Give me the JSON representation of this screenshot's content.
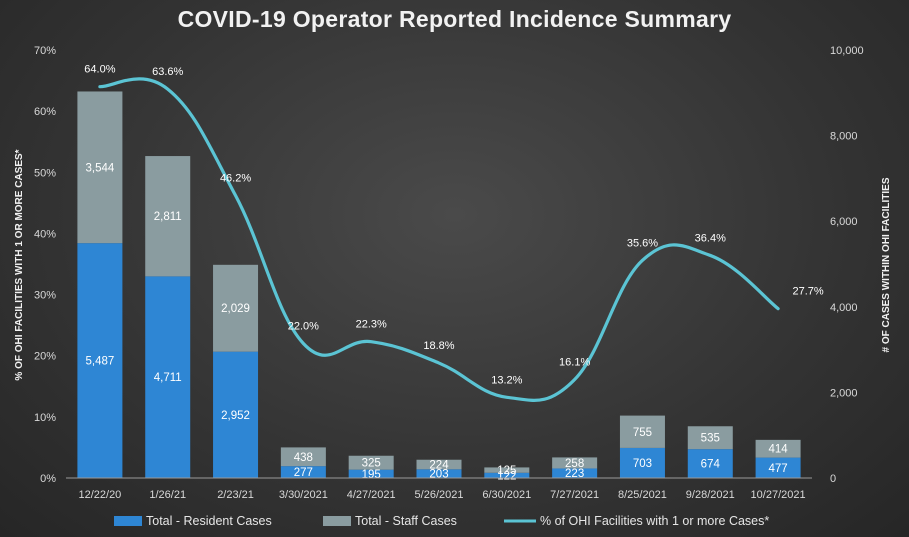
{
  "chart_data": {
    "type": "bar",
    "title": "COVID-19 Operator Reported Incidence Summary",
    "categories": [
      "12/22/20",
      "1/26/21",
      "2/23/21",
      "3/30/2021",
      "4/27/2021",
      "5/26/2021",
      "6/30/2021",
      "7/27/2021",
      "8/25/2021",
      "9/28/2021",
      "10/27/2021"
    ],
    "series": [
      {
        "name": "Total - Resident Cases",
        "type": "stacked-bar",
        "axis": "right",
        "color": "#2e86d4",
        "values": [
          5487,
          4711,
          2952,
          277,
          195,
          203,
          122,
          223,
          703,
          674,
          477
        ],
        "labels": [
          "5,487",
          "4,711",
          "2,952",
          "277",
          "195",
          "203",
          "122",
          "223",
          "703",
          "674",
          "477"
        ]
      },
      {
        "name": "Total - Staff Cases",
        "type": "stacked-bar",
        "axis": "right",
        "color": "#8a9ca0",
        "values": [
          3544,
          2811,
          2029,
          438,
          325,
          224,
          125,
          258,
          755,
          535,
          414
        ],
        "labels": [
          "3,544",
          "2,811",
          "2,029",
          "438",
          "325",
          "224",
          "125",
          "258",
          "755",
          "535",
          "414"
        ]
      },
      {
        "name": "% of OHI Facilities with 1 or more Cases*",
        "type": "line",
        "axis": "left",
        "color": "#5bc4d4",
        "values": [
          64.0,
          63.6,
          46.2,
          22.0,
          22.3,
          18.8,
          13.2,
          16.1,
          35.6,
          36.4,
          27.7
        ],
        "labels": [
          "64.0%",
          "63.6%",
          "46.2%",
          "22.0%",
          "22.3%",
          "18.8%",
          "13.2%",
          "16.1%",
          "35.6%",
          "36.4%",
          "27.7%"
        ]
      }
    ],
    "y_left": {
      "label": "% OF OHI FACILITIES WITH 1 OR MORE CASES*",
      "range": [
        0,
        70
      ],
      "ticks": [
        0,
        10,
        20,
        30,
        40,
        50,
        60,
        70
      ],
      "tick_labels": [
        "0%",
        "10%",
        "20%",
        "30%",
        "40%",
        "50%",
        "60%",
        "70%"
      ]
    },
    "y_right": {
      "label": "# OF CASES WITHIN OHI FACILITIES",
      "range": [
        0,
        10000
      ],
      "ticks": [
        0,
        2000,
        4000,
        6000,
        8000,
        10000
      ],
      "tick_labels": [
        "0",
        "2,000",
        "4,000",
        "6,000",
        "8,000",
        "10,000"
      ]
    },
    "legend": {
      "position": "bottom",
      "entries": [
        "Total - Resident Cases",
        "Total - Staff Cases",
        "% of OHI Facilities with 1 or more Cases*"
      ]
    },
    "grid": false
  }
}
